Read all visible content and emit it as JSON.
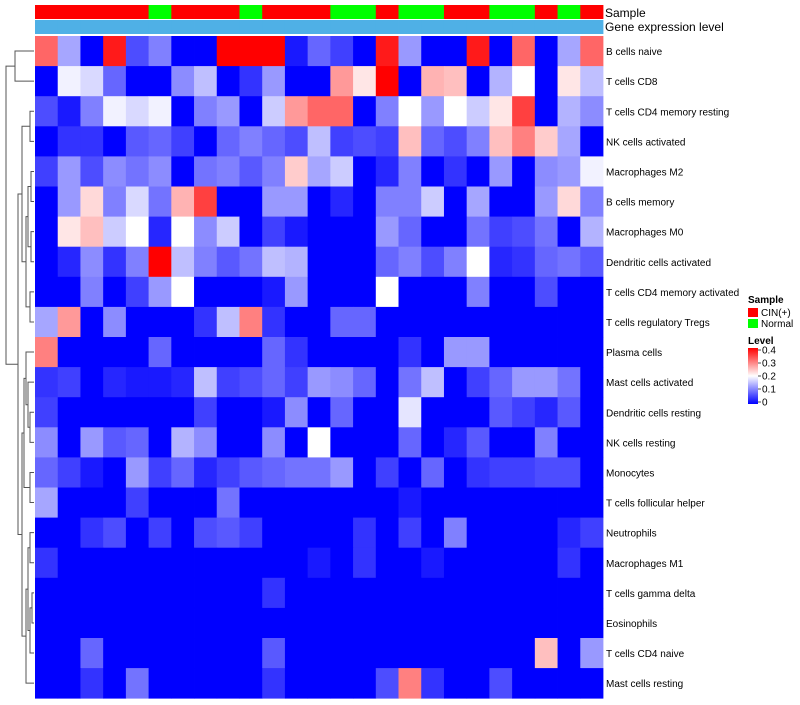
{
  "chart_data": {
    "type": "heatmap",
    "annotation_labels": [
      "Sample",
      "Gene expression level"
    ],
    "legend": {
      "sample_title": "Sample",
      "sample_entries": [
        {
          "label": "CIN(+)",
          "color": "#ff0000"
        },
        {
          "label": "Normal",
          "color": "#00ff00"
        }
      ],
      "level_title": "Level",
      "level_ticks": [
        "0.4",
        "0.3",
        "0.2",
        "0.1",
        "0"
      ],
      "level_tick_values": [
        0.4,
        0.3,
        0.2,
        0.1,
        0
      ]
    },
    "color_scale": {
      "min": 0,
      "max": 0.4,
      "low": "#0000ff",
      "mid": "#ffffff",
      "high": "#ff0000"
    },
    "sample_groups": [
      "CIN(+)",
      "CIN(+)",
      "CIN(+)",
      "CIN(+)",
      "CIN(+)",
      "Normal",
      "CIN(+)",
      "CIN(+)",
      "CIN(+)",
      "Normal",
      "CIN(+)",
      "CIN(+)",
      "CIN(+)",
      "Normal",
      "Normal",
      "CIN(+)",
      "Normal",
      "Normal",
      "CIN(+)",
      "CIN(+)",
      "Normal",
      "Normal",
      "CIN(+)",
      "Normal",
      "CIN(+)"
    ],
    "gene_expression_level": [
      0.3,
      0.3,
      0.3,
      0.3,
      0.3,
      0.3,
      0.3,
      0.3,
      0.3,
      0.3,
      0.3,
      0.3,
      0.3,
      0.3,
      0.3,
      0.3,
      0.3,
      0.3,
      0.3,
      0.3,
      0.3,
      0.3,
      0.3,
      0.3,
      0.3
    ],
    "rows": [
      "B cells naive",
      "T cells CD8",
      "T cells CD4 memory resting",
      "NK cells activated",
      "Macrophages M2",
      "B cells memory",
      "Macrophages M0",
      "Dendritic cells activated",
      "T cells CD4 memory activated",
      "T cells regulatory  Tregs",
      "Plasma cells",
      "Mast cells activated",
      "Dendritic cells resting",
      "NK cells resting",
      "Monocytes",
      "T cells follicular helper",
      "Neutrophils",
      "Macrophages M1",
      "T cells gamma delta",
      "Eosinophils",
      "T cells CD4 naive",
      "Mast cells resting"
    ],
    "values": [
      [
        0.32,
        0.13,
        0.0,
        0.38,
        0.06,
        0.1,
        0.0,
        0.0,
        0.4,
        0.4,
        0.4,
        0.02,
        0.08,
        0.05,
        0.0,
        0.38,
        0.12,
        0.0,
        0.0,
        0.38,
        0.0,
        0.32,
        0.0,
        0.13,
        0.32
      ],
      [
        0.0,
        0.19,
        0.17,
        0.08,
        0.0,
        0.0,
        0.11,
        0.15,
        0.0,
        0.04,
        0.12,
        0.0,
        0.0,
        0.28,
        0.22,
        0.4,
        0.0,
        0.26,
        0.25,
        0.0,
        0.14,
        0.2,
        0.0,
        0.22,
        0.15
      ],
      [
        0.06,
        0.02,
        0.1,
        0.19,
        0.17,
        0.19,
        0.0,
        0.1,
        0.12,
        0.0,
        0.16,
        0.28,
        0.32,
        0.32,
        0.0,
        0.1,
        0.2,
        0.12,
        0.2,
        0.16,
        0.22,
        0.35,
        0.0,
        0.14,
        0.11
      ],
      [
        0.0,
        0.04,
        0.04,
        0.0,
        0.07,
        0.08,
        0.05,
        0.0,
        0.08,
        0.1,
        0.08,
        0.06,
        0.15,
        0.05,
        0.06,
        0.05,
        0.25,
        0.08,
        0.06,
        0.1,
        0.25,
        0.3,
        0.24,
        0.13,
        0.0
      ],
      [
        0.05,
        0.12,
        0.06,
        0.11,
        0.09,
        0.11,
        0.0,
        0.09,
        0.1,
        0.07,
        0.1,
        0.24,
        0.13,
        0.16,
        0.0,
        0.03,
        0.1,
        0.0,
        0.04,
        0.0,
        0.12,
        0.0,
        0.11,
        0.12,
        0.19
      ],
      [
        0.0,
        0.12,
        0.23,
        0.1,
        0.17,
        0.09,
        0.26,
        0.35,
        0.0,
        0.0,
        0.12,
        0.12,
        0.0,
        0.03,
        0.0,
        0.1,
        0.1,
        0.16,
        0.0,
        0.13,
        0.0,
        0.0,
        0.12,
        0.23,
        0.1
      ],
      [
        0.0,
        0.22,
        0.25,
        0.16,
        0.2,
        0.03,
        0.2,
        0.11,
        0.16,
        0.0,
        0.05,
        0.02,
        0.0,
        0.0,
        0.0,
        0.12,
        0.08,
        0.0,
        0.0,
        0.09,
        0.05,
        0.06,
        0.09,
        0.0,
        0.14
      ],
      [
        0.0,
        0.03,
        0.11,
        0.04,
        0.1,
        0.4,
        0.15,
        0.1,
        0.07,
        0.09,
        0.15,
        0.14,
        0.0,
        0.0,
        0.0,
        0.08,
        0.1,
        0.06,
        0.1,
        0.2,
        0.03,
        0.04,
        0.08,
        0.09,
        0.07
      ],
      [
        0.0,
        0.0,
        0.1,
        0.0,
        0.05,
        0.12,
        0.2,
        0.0,
        0.0,
        0.0,
        0.02,
        0.12,
        0.0,
        0.0,
        0.0,
        0.2,
        0.0,
        0.0,
        0.0,
        0.1,
        0.0,
        0.0,
        0.06,
        0.0,
        0.0
      ],
      [
        0.13,
        0.28,
        0.0,
        0.11,
        0.0,
        0.0,
        0.0,
        0.04,
        0.15,
        0.3,
        0.04,
        0.0,
        0.0,
        0.08,
        0.08,
        0.0,
        0.0,
        0.0,
        0.0,
        0.0,
        0.0,
        0.0,
        0.0,
        0.0,
        0.0
      ],
      [
        0.3,
        0.0,
        0.0,
        0.0,
        0.0,
        0.08,
        0.0,
        0.0,
        0.0,
        0.0,
        0.08,
        0.04,
        0.0,
        0.0,
        0.0,
        0.0,
        0.04,
        0.0,
        0.12,
        0.12,
        0.0,
        0.0,
        0.0,
        0.0,
        0.0
      ],
      [
        0.04,
        0.05,
        0.0,
        0.03,
        0.02,
        0.02,
        0.03,
        0.15,
        0.05,
        0.06,
        0.08,
        0.05,
        0.12,
        0.11,
        0.08,
        0.0,
        0.09,
        0.15,
        0.0,
        0.05,
        0.08,
        0.12,
        0.12,
        0.09,
        0.0
      ],
      [
        0.05,
        0.0,
        0.0,
        0.0,
        0.0,
        0.0,
        0.0,
        0.05,
        0.0,
        0.0,
        0.02,
        0.11,
        0.0,
        0.08,
        0.0,
        0.0,
        0.18,
        0.0,
        0.0,
        0.0,
        0.07,
        0.05,
        0.03,
        0.07,
        0.0
      ],
      [
        0.11,
        0.0,
        0.12,
        0.07,
        0.08,
        0.0,
        0.14,
        0.11,
        0.0,
        0.0,
        0.11,
        0.0,
        0.2,
        0.0,
        0.0,
        0.0,
        0.08,
        0.0,
        0.03,
        0.07,
        0.0,
        0.0,
        0.1,
        0.0,
        0.0
      ],
      [
        0.08,
        0.05,
        0.02,
        0.0,
        0.12,
        0.05,
        0.08,
        0.03,
        0.05,
        0.07,
        0.08,
        0.09,
        0.09,
        0.12,
        0.0,
        0.05,
        0.0,
        0.08,
        0.0,
        0.04,
        0.05,
        0.05,
        0.06,
        0.06,
        0.0
      ],
      [
        0.13,
        0.0,
        0.0,
        0.0,
        0.05,
        0.0,
        0.0,
        0.0,
        0.09,
        0.0,
        0.0,
        0.0,
        0.0,
        0.0,
        0.0,
        0.0,
        0.02,
        0.0,
        0.0,
        0.0,
        0.0,
        0.0,
        0.0,
        0.0,
        0.0
      ],
      [
        0.0,
        0.0,
        0.04,
        0.06,
        0.0,
        0.05,
        0.0,
        0.06,
        0.07,
        0.05,
        0.0,
        0.0,
        0.0,
        0.0,
        0.04,
        0.0,
        0.05,
        0.0,
        0.1,
        0.0,
        0.0,
        0.0,
        0.0,
        0.03,
        0.05
      ],
      [
        0.04,
        0.0,
        0.0,
        0.0,
        0.0,
        0.0,
        0.0,
        0.0,
        0.0,
        0.0,
        0.0,
        0.0,
        0.02,
        0.0,
        0.04,
        0.0,
        0.0,
        0.02,
        0.0,
        0.0,
        0.0,
        0.0,
        0.0,
        0.04,
        0.0
      ],
      [
        0.0,
        0.0,
        0.0,
        0.0,
        0.0,
        0.0,
        0.0,
        0.0,
        0.0,
        0.0,
        0.04,
        0.0,
        0.0,
        0.0,
        0.0,
        0.0,
        0.0,
        0.0,
        0.0,
        0.0,
        0.0,
        0.0,
        0.0,
        0.0,
        0.0
      ],
      [
        0.0,
        0.0,
        0.0,
        0.0,
        0.0,
        0.0,
        0.0,
        0.0,
        0.0,
        0.0,
        0.0,
        0.0,
        0.0,
        0.0,
        0.0,
        0.0,
        0.0,
        0.0,
        0.0,
        0.0,
        0.0,
        0.0,
        0.0,
        0.0,
        0.0
      ],
      [
        0.0,
        0.0,
        0.08,
        0.0,
        0.0,
        0.0,
        0.0,
        0.0,
        0.0,
        0.0,
        0.07,
        0.0,
        0.0,
        0.0,
        0.0,
        0.0,
        0.0,
        0.0,
        0.0,
        0.0,
        0.0,
        0.0,
        0.25,
        0.0,
        0.12
      ],
      [
        0.0,
        0.0,
        0.04,
        0.0,
        0.09,
        0.0,
        0.0,
        0.0,
        0.0,
        0.0,
        0.04,
        0.0,
        0.0,
        0.0,
        0.0,
        0.06,
        0.3,
        0.04,
        0.0,
        0.0,
        0.06,
        0.0,
        0.0,
        0.0,
        0.0
      ]
    ]
  }
}
